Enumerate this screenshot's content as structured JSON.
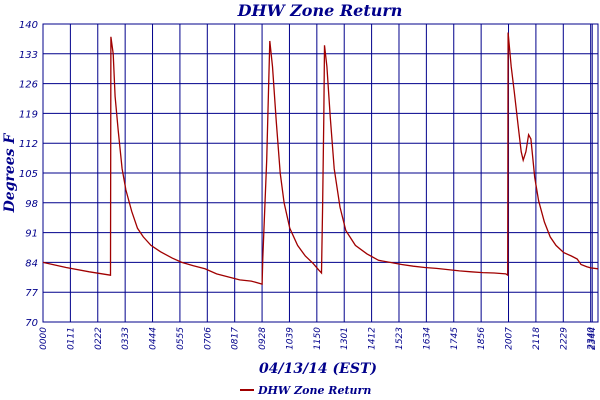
{
  "chart_data": {
    "type": "line",
    "title": "DHW Zone Return",
    "xlabel": "04/13/14 (EST)",
    "ylabel": "Degrees F",
    "ylim": [
      70,
      140
    ],
    "yticks": [
      70,
      77,
      84,
      91,
      98,
      105,
      112,
      119,
      126,
      133,
      140
    ],
    "xlim": [
      "00:00",
      "23:59"
    ],
    "xticks": [
      "00:00",
      "01:11",
      "02:22",
      "03:33",
      "04:44",
      "05:55",
      "07:06",
      "08:17",
      "09:28",
      "10:39",
      "11:50",
      "13:01",
      "14:12",
      "15:23",
      "16:34",
      "17:45",
      "18:56",
      "20:07",
      "21:18",
      "22:29",
      "23:40",
      "23:44"
    ],
    "grid": true,
    "legend_position": "bottom-center",
    "series": [
      {
        "name": "DHW Zone Return",
        "color": "#a00000",
        "points": [
          [
            "00:00",
            84.0
          ],
          [
            "01:00",
            82.8
          ],
          [
            "02:00",
            81.8
          ],
          [
            "02:55",
            81.0
          ],
          [
            "02:56",
            137.0
          ],
          [
            "03:02",
            133.0
          ],
          [
            "03:07",
            123.0
          ],
          [
            "03:15",
            115.0
          ],
          [
            "03:25",
            106.0
          ],
          [
            "03:35",
            101.0
          ],
          [
            "03:50",
            96.0
          ],
          [
            "04:05",
            92.0
          ],
          [
            "04:20",
            90.0
          ],
          [
            "04:40",
            88.0
          ],
          [
            "05:05",
            86.5
          ],
          [
            "05:35",
            85.0
          ],
          [
            "06:00",
            84.0
          ],
          [
            "06:30",
            83.2
          ],
          [
            "07:00",
            82.5
          ],
          [
            "07:30",
            81.3
          ],
          [
            "08:00",
            80.6
          ],
          [
            "08:30",
            79.9
          ],
          [
            "09:00",
            79.6
          ],
          [
            "09:28",
            78.9
          ],
          [
            "09:30",
            85.0
          ],
          [
            "09:40",
            108.0
          ],
          [
            "09:48",
            136.0
          ],
          [
            "09:55",
            130.0
          ],
          [
            "10:05",
            117.0
          ],
          [
            "10:15",
            105.0
          ],
          [
            "10:25",
            98.0
          ],
          [
            "10:40",
            92.0
          ],
          [
            "11:00",
            88.0
          ],
          [
            "11:20",
            85.5
          ],
          [
            "11:40",
            83.8
          ],
          [
            "11:55",
            82.2
          ],
          [
            "12:02",
            81.5
          ],
          [
            "12:05",
            97.0
          ],
          [
            "12:08",
            118.0
          ],
          [
            "12:10",
            135.0
          ],
          [
            "12:16",
            130.0
          ],
          [
            "12:25",
            118.0
          ],
          [
            "12:35",
            106.0
          ],
          [
            "12:50",
            97.0
          ],
          [
            "13:05",
            91.5
          ],
          [
            "13:30",
            88.0
          ],
          [
            "14:00",
            86.0
          ],
          [
            "14:30",
            84.5
          ],
          [
            "15:00",
            84.0
          ],
          [
            "15:30",
            83.5
          ],
          [
            "16:00",
            83.1
          ],
          [
            "16:30",
            82.8
          ],
          [
            "17:00",
            82.6
          ],
          [
            "17:30",
            82.3
          ],
          [
            "18:00",
            82.0
          ],
          [
            "18:30",
            81.8
          ],
          [
            "19:00",
            81.6
          ],
          [
            "19:30",
            81.5
          ],
          [
            "20:00",
            81.3
          ],
          [
            "20:05",
            81.0
          ],
          [
            "20:06",
            138.0
          ],
          [
            "20:14",
            130.0
          ],
          [
            "20:22",
            124.0
          ],
          [
            "20:32",
            116.0
          ],
          [
            "20:40",
            110.0
          ],
          [
            "20:45",
            108.0
          ],
          [
            "20:52",
            110.0
          ],
          [
            "20:59",
            114.0
          ],
          [
            "21:05",
            113.0
          ],
          [
            "21:15",
            104.0
          ],
          [
            "21:25",
            98.5
          ],
          [
            "21:40",
            93.5
          ],
          [
            "21:55",
            90.0
          ],
          [
            "22:10",
            88.0
          ],
          [
            "22:30",
            86.3
          ],
          [
            "22:50",
            85.5
          ],
          [
            "23:05",
            84.8
          ],
          [
            "23:15",
            83.5
          ],
          [
            "23:30",
            83.0
          ],
          [
            "23:40",
            82.7
          ],
          [
            "23:59",
            82.5
          ]
        ]
      }
    ]
  }
}
